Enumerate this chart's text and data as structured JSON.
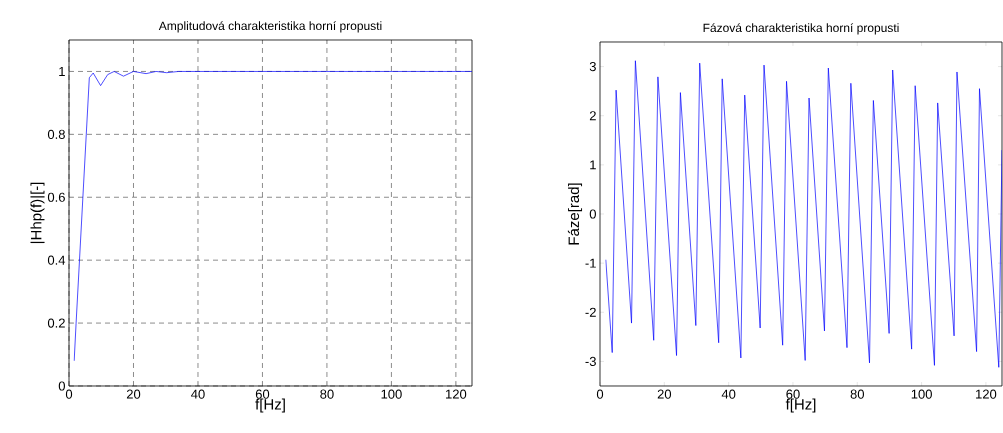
{
  "chart_data": [
    {
      "type": "line",
      "title": "Amplitudová charakteristika horní propusti",
      "xlabel": "f[Hz]",
      "ylabel": "|Hhp(f)|[-]",
      "x": [
        1.6,
        2.2,
        6.3,
        7.5,
        9.8,
        12,
        14,
        16.9,
        20,
        23.9,
        27,
        30.3,
        34,
        125
      ],
      "series": [
        {
          "color": "#0000ff",
          "values": [
            0.08,
            0.2,
            0.98,
            0.995,
            0.955,
            0.99,
            1.0,
            0.985,
            1.0,
            0.993,
            1.0,
            0.996,
            1.0,
            1.0
          ]
        }
      ],
      "xlim": [
        0,
        125
      ],
      "ylim": [
        0,
        1.1
      ],
      "xticks": [
        0,
        20,
        40,
        60,
        80,
        100,
        120
      ],
      "yticks": [
        0,
        0.2,
        0.4,
        0.6,
        0.8,
        1
      ],
      "grid": true,
      "line_style": "solid",
      "marker": "none"
    },
    {
      "type": "line",
      "title": "Fázová charakteristika horní propusti",
      "xlabel": "f[Hz]",
      "ylabel": "Fáze[rad]",
      "x": [
        1.8,
        3.8,
        5,
        9.8,
        11,
        16.7,
        18,
        23.8,
        25,
        29.8,
        31,
        36.9,
        38,
        43.8,
        45,
        49.8,
        51,
        56.8,
        58,
        63.8,
        65,
        69.8,
        71,
        76.8,
        78,
        83.8,
        85,
        89.9,
        91,
        96.9,
        98,
        104,
        105,
        110.1,
        111,
        117.1,
        118,
        124,
        125
      ],
      "series": [
        {
          "color": "#0000ff",
          "values": [
            -0.93,
            -2.82,
            2.52,
            -2.22,
            3.12,
            -2.57,
            2.79,
            -2.88,
            2.47,
            -2.27,
            3.07,
            -2.62,
            2.75,
            -2.93,
            2.42,
            -2.32,
            3.03,
            -2.67,
            2.7,
            -2.98,
            2.36,
            -2.38,
            2.97,
            -2.72,
            2.66,
            -3.03,
            2.31,
            -2.43,
            2.93,
            -2.75,
            2.61,
            -3.08,
            2.26,
            -2.48,
            2.89,
            -2.8,
            2.55,
            -3.12,
            1.3
          ]
        }
      ],
      "xlim": [
        0,
        125
      ],
      "ylim": [
        -3.5,
        3.5
      ],
      "xticks": [
        0,
        20,
        40,
        60,
        80,
        100,
        120
      ],
      "yticks": [
        -3,
        -2,
        -1,
        0,
        1,
        2,
        3
      ],
      "grid": false,
      "line_style": "solid",
      "marker": "none"
    }
  ]
}
